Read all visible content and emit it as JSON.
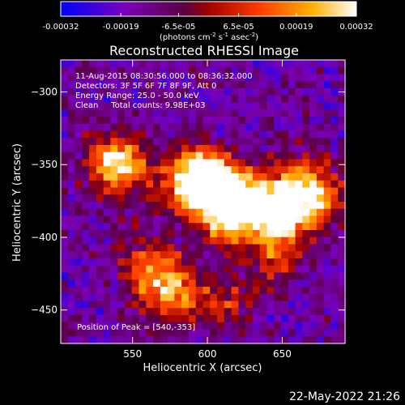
{
  "chart_data": {
    "type": "heatmap",
    "title": "Reconstructed RHESSI Image",
    "xlabel": "Heliocentric X (arcsec)",
    "ylabel": "Heliocentric Y (arcsec)",
    "xlim": [
      502,
      692
    ],
    "ylim": [
      -473,
      -278
    ],
    "x_ticks": [
      550,
      600,
      650
    ],
    "y_ticks": [
      -300,
      -350,
      -400,
      -450
    ],
    "colorbar": {
      "label_prefix": "(photons cm",
      "label_exp1": "-2",
      "label_mid1": " s",
      "label_exp2": "-1",
      "label_mid2": " asec",
      "label_exp3": "-2",
      "label_suffix": ")",
      "range": [
        -0.00032,
        0.00032
      ],
      "tick_values": [
        -0.00032,
        -0.00019,
        -6.5e-05,
        6.5e-05,
        0.00019,
        0.00032
      ],
      "tick_labels": [
        "-0.00032",
        "-0.00019",
        "-6.5e-05",
        "6.5e-05",
        "0.00019",
        "0.00032"
      ],
      "colors": [
        "#0000ff",
        "#7a00b8",
        "#5a0040",
        "#a00000",
        "#ff4000",
        "#ffb000",
        "#ffffff"
      ]
    },
    "annotations": {
      "time_range": "11-Aug-2015 08:30:56.000 to 08:36:32.000",
      "detectors": "Detectors: 3F 5F 6F 7F 8F 9F, Att 0",
      "energy": "Energy Range: 25.0 - 50.0 keV",
      "method": "Clean     Total counts: 9.98E+03",
      "peak": "Position of Peak = [540,-353]"
    },
    "peak_position": [
      540,
      -353
    ],
    "image": {
      "grid": "40 x 40 pixels spanning xlim and ylim",
      "bright_sources": [
        {
          "x": 540,
          "y": -350,
          "level": 0.95
        },
        {
          "x": 600,
          "y": -357,
          "level": 0.85
        },
        {
          "x": 590,
          "y": -365,
          "level": 0.78
        },
        {
          "x": 612,
          "y": -384,
          "level": 0.82
        },
        {
          "x": 628,
          "y": -374,
          "level": 0.72
        },
        {
          "x": 648,
          "y": -385,
          "level": 0.8
        },
        {
          "x": 672,
          "y": -375,
          "level": 0.66
        },
        {
          "x": 662,
          "y": -362,
          "level": 0.6
        },
        {
          "x": 576,
          "y": -437,
          "level": 0.75
        },
        {
          "x": 560,
          "y": -420,
          "level": 0.55
        },
        {
          "x": 645,
          "y": -412,
          "level": 0.52
        },
        {
          "x": 612,
          "y": -445,
          "level": 0.5
        }
      ]
    }
  },
  "timestamp": "22-May-2022 21:26"
}
